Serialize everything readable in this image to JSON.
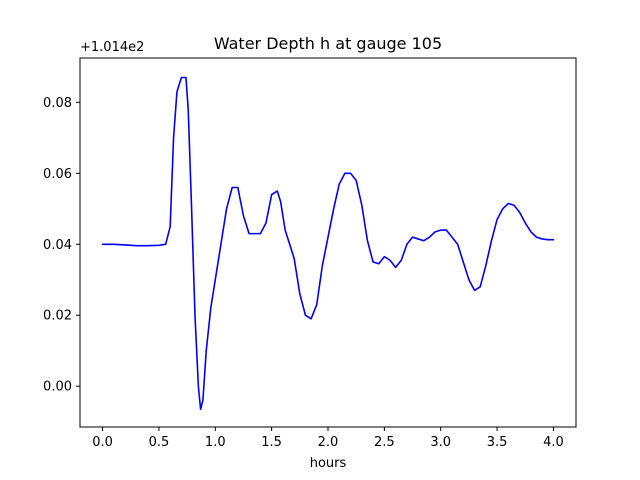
{
  "chart_data": {
    "type": "line",
    "title": "Water Depth h at gauge 105",
    "xlabel": "hours",
    "ylabel": "",
    "y_offset_label": "+1.014e2",
    "xlim": [
      -0.2,
      4.2
    ],
    "ylim": [
      -0.0115,
      0.0925
    ],
    "xticks": [
      0.0,
      0.5,
      1.0,
      1.5,
      2.0,
      2.5,
      3.0,
      3.5,
      4.0
    ],
    "xtick_labels": [
      "0.0",
      "0.5",
      "1.0",
      "1.5",
      "2.0",
      "2.5",
      "3.0",
      "3.5",
      "4.0"
    ],
    "yticks": [
      0.0,
      0.02,
      0.04,
      0.06,
      0.08
    ],
    "ytick_labels": [
      "0.00",
      "0.02",
      "0.04",
      "0.06",
      "0.08"
    ],
    "grid": false,
    "legend": "none",
    "series": [
      {
        "color": "#0000ff",
        "x": [
          0.0,
          0.1,
          0.2,
          0.3,
          0.4,
          0.5,
          0.56,
          0.6,
          0.63,
          0.66,
          0.7,
          0.74,
          0.76,
          0.79,
          0.82,
          0.85,
          0.87,
          0.89,
          0.92,
          0.96,
          1.0,
          1.05,
          1.1,
          1.15,
          1.2,
          1.25,
          1.3,
          1.35,
          1.4,
          1.45,
          1.5,
          1.55,
          1.58,
          1.62,
          1.65,
          1.7,
          1.75,
          1.8,
          1.85,
          1.9,
          1.95,
          2.0,
          2.05,
          2.1,
          2.15,
          2.2,
          2.25,
          2.3,
          2.35,
          2.4,
          2.45,
          2.5,
          2.55,
          2.6,
          2.65,
          2.7,
          2.75,
          2.8,
          2.85,
          2.9,
          2.95,
          3.0,
          3.05,
          3.1,
          3.15,
          3.2,
          3.25,
          3.3,
          3.35,
          3.4,
          3.45,
          3.5,
          3.55,
          3.6,
          3.65,
          3.7,
          3.75,
          3.8,
          3.85,
          3.9,
          3.95,
          4.0
        ],
        "y": [
          0.04,
          0.04,
          0.0398,
          0.0396,
          0.0396,
          0.0397,
          0.04,
          0.045,
          0.07,
          0.083,
          0.087,
          0.087,
          0.078,
          0.05,
          0.02,
          0.0,
          -0.0065,
          -0.004,
          0.01,
          0.022,
          0.03,
          0.04,
          0.05,
          0.056,
          0.056,
          0.048,
          0.043,
          0.043,
          0.043,
          0.046,
          0.054,
          0.055,
          0.052,
          0.044,
          0.041,
          0.036,
          0.026,
          0.02,
          0.019,
          0.023,
          0.034,
          0.042,
          0.05,
          0.057,
          0.06,
          0.06,
          0.058,
          0.051,
          0.041,
          0.035,
          0.0345,
          0.0365,
          0.0355,
          0.0335,
          0.0355,
          0.04,
          0.042,
          0.0415,
          0.041,
          0.042,
          0.0435,
          0.044,
          0.044,
          0.042,
          0.04,
          0.035,
          0.03,
          0.027,
          0.028,
          0.034,
          0.041,
          0.047,
          0.05,
          0.0515,
          0.051,
          0.049,
          0.046,
          0.0435,
          0.042,
          0.0415,
          0.0413,
          0.0413
        ]
      }
    ]
  }
}
